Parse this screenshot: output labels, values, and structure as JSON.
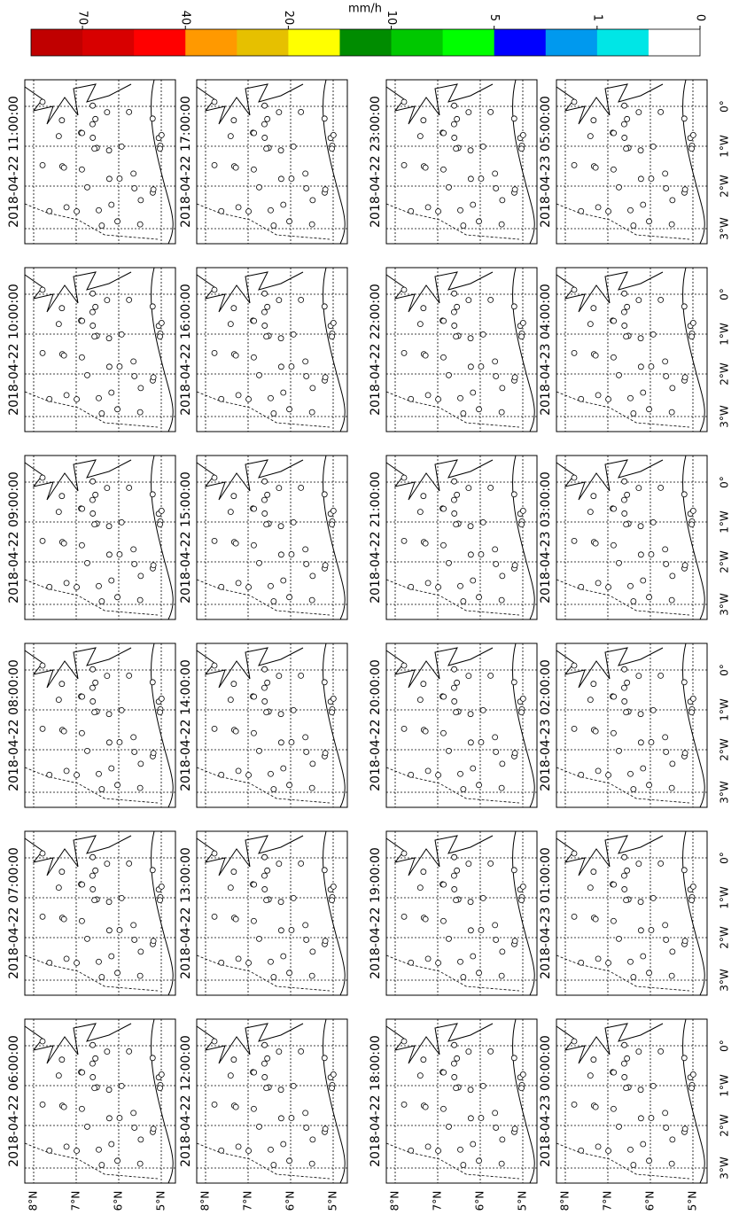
{
  "colorbar": {
    "label": "mm/h",
    "colors": [
      "#c00000",
      "#d80000",
      "#ff0000",
      "#ff9900",
      "#e6c000",
      "#ffff00",
      "#008c00",
      "#00c800",
      "#00ff00",
      "#0000ff",
      "#0099ee",
      "#00e6e6",
      "#ffffff"
    ],
    "ticks": [
      0,
      1,
      5,
      10,
      20,
      40,
      70
    ]
  },
  "lat_labels": [
    "8°N",
    "7°N",
    "6°N",
    "5°N"
  ],
  "lon_labels": [
    "3°W",
    "2°W",
    "1°W",
    "0°"
  ],
  "panels": [
    {
      "title": "2018-04-22 06:00:00"
    },
    {
      "title": "2018-04-22 07:00:00"
    },
    {
      "title": "2018-04-22 08:00:00"
    },
    {
      "title": "2018-04-22 09:00:00"
    },
    {
      "title": "2018-04-22 10:00:00"
    },
    {
      "title": "2018-04-22 11:00:00"
    },
    {
      "title": "2018-04-22 12:00:00"
    },
    {
      "title": "2018-04-22 13:00:00"
    },
    {
      "title": "2018-04-22 14:00:00"
    },
    {
      "title": "2018-04-22 15:00:00"
    },
    {
      "title": "2018-04-22 16:00:00"
    },
    {
      "title": "2018-04-22 17:00:00"
    },
    {
      "title": "2018-04-22 18:00:00"
    },
    {
      "title": "2018-04-22 19:00:00"
    },
    {
      "title": "2018-04-22 20:00:00"
    },
    {
      "title": "2018-04-22 21:00:00"
    },
    {
      "title": "2018-04-22 22:00:00"
    },
    {
      "title": "2018-04-22 23:00:00"
    },
    {
      "title": "2018-04-23 00:00:00"
    },
    {
      "title": "2018-04-23 01:00:00"
    },
    {
      "title": "2018-04-23 02:00:00"
    },
    {
      "title": "2018-04-23 03:00:00"
    },
    {
      "title": "2018-04-23 04:00:00"
    },
    {
      "title": "2018-04-23 05:00:00"
    }
  ]
}
